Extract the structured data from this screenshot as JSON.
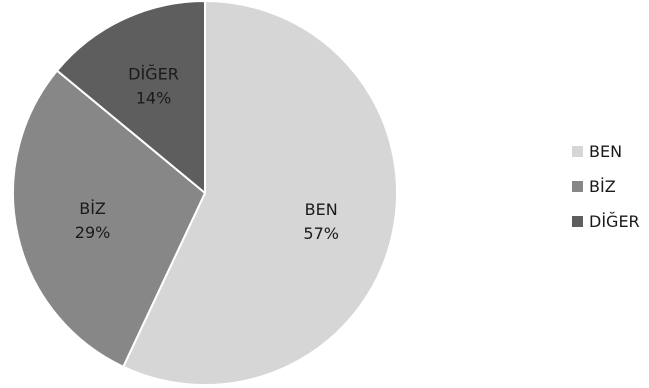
{
  "chart_data": {
    "type": "pie",
    "labels": [
      "BEN",
      "BİZ",
      "DİĞER"
    ],
    "values": [
      57,
      29,
      14
    ],
    "value_labels": [
      "57%",
      "29%",
      "14%"
    ],
    "colors": [
      "#d6d6d6",
      "#878787",
      "#5e5e5e"
    ],
    "legend_position": "right",
    "start": "12 o'clock",
    "direction": "clockwise"
  }
}
